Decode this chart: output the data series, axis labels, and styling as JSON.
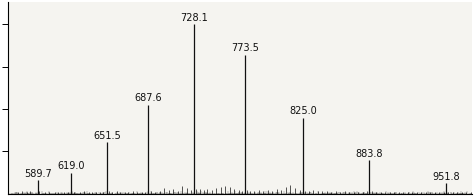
{
  "xlim": [
    563,
    975
  ],
  "ylim": [
    0,
    1.13
  ],
  "background_color": "#ffffff",
  "plot_bg_color": "#f5f4f0",
  "spine_color": "#000000",
  "peaks": [
    {
      "mz": 589.7,
      "intensity": 0.082,
      "label": "589.7"
    },
    {
      "mz": 619.0,
      "intensity": 0.125,
      "label": "619.0"
    },
    {
      "mz": 651.5,
      "intensity": 0.305,
      "label": "651.5"
    },
    {
      "mz": 687.6,
      "intensity": 0.525,
      "label": "687.6"
    },
    {
      "mz": 728.1,
      "intensity": 1.0,
      "label": "728.1"
    },
    {
      "mz": 773.5,
      "intensity": 0.82,
      "label": "773.5"
    },
    {
      "mz": 825.0,
      "intensity": 0.45,
      "label": "825.0"
    },
    {
      "mz": 883.8,
      "intensity": 0.2,
      "label": "883.8"
    },
    {
      "mz": 951.8,
      "intensity": 0.065,
      "label": "951.8"
    }
  ],
  "ytick_positions": [
    0.25,
    0.5,
    0.75,
    1.0
  ],
  "peak_color": "#111111",
  "label_fontsize": 7.0,
  "label_color": "#111111",
  "minor_peaks": [
    [
      572,
      0.012
    ],
    [
      576,
      0.018
    ],
    [
      580,
      0.01
    ],
    [
      583,
      0.015
    ],
    [
      591,
      0.015
    ],
    [
      596,
      0.013
    ],
    [
      600,
      0.01
    ],
    [
      605,
      0.012
    ],
    [
      608,
      0.01
    ],
    [
      613,
      0.012
    ],
    [
      617,
      0.01
    ],
    [
      622,
      0.013
    ],
    [
      627,
      0.012
    ],
    [
      631,
      0.015
    ],
    [
      635,
      0.01
    ],
    [
      638,
      0.013
    ],
    [
      641,
      0.01
    ],
    [
      645,
      0.012
    ],
    [
      648,
      0.01
    ],
    [
      653,
      0.015
    ],
    [
      656,
      0.012
    ],
    [
      660,
      0.018
    ],
    [
      663,
      0.013
    ],
    [
      667,
      0.01
    ],
    [
      670,
      0.012
    ],
    [
      674,
      0.015
    ],
    [
      678,
      0.01
    ],
    [
      682,
      0.013
    ],
    [
      685,
      0.012
    ],
    [
      690,
      0.018
    ],
    [
      694,
      0.013
    ],
    [
      698,
      0.015
    ],
    [
      702,
      0.035
    ],
    [
      706,
      0.025
    ],
    [
      710,
      0.03
    ],
    [
      714,
      0.02
    ],
    [
      718,
      0.045
    ],
    [
      722,
      0.035
    ],
    [
      726,
      0.025
    ],
    [
      730,
      0.03
    ],
    [
      734,
      0.028
    ],
    [
      737,
      0.022
    ],
    [
      740,
      0.03
    ],
    [
      744,
      0.025
    ],
    [
      748,
      0.035
    ],
    [
      752,
      0.04
    ],
    [
      756,
      0.045
    ],
    [
      760,
      0.038
    ],
    [
      764,
      0.03
    ],
    [
      768,
      0.025
    ],
    [
      771,
      0.02
    ],
    [
      775,
      0.025
    ],
    [
      778,
      0.018
    ],
    [
      782,
      0.02
    ],
    [
      786,
      0.025
    ],
    [
      790,
      0.018
    ],
    [
      794,
      0.022
    ],
    [
      798,
      0.018
    ],
    [
      802,
      0.03
    ],
    [
      806,
      0.025
    ],
    [
      810,
      0.038
    ],
    [
      814,
      0.055
    ],
    [
      818,
      0.035
    ],
    [
      822,
      0.025
    ],
    [
      827,
      0.02
    ],
    [
      830,
      0.018
    ],
    [
      834,
      0.022
    ],
    [
      838,
      0.018
    ],
    [
      842,
      0.015
    ],
    [
      846,
      0.018
    ],
    [
      850,
      0.013
    ],
    [
      854,
      0.015
    ],
    [
      858,
      0.012
    ],
    [
      862,
      0.015
    ],
    [
      866,
      0.01
    ],
    [
      870,
      0.013
    ],
    [
      874,
      0.01
    ],
    [
      878,
      0.013
    ],
    [
      882,
      0.015
    ],
    [
      886,
      0.018
    ],
    [
      890,
      0.012
    ],
    [
      894,
      0.01
    ],
    [
      898,
      0.013
    ],
    [
      902,
      0.01
    ],
    [
      906,
      0.012
    ],
    [
      910,
      0.01
    ],
    [
      914,
      0.012
    ],
    [
      918,
      0.01
    ],
    [
      922,
      0.012
    ],
    [
      926,
      0.01
    ],
    [
      930,
      0.013
    ],
    [
      934,
      0.01
    ],
    [
      938,
      0.012
    ],
    [
      942,
      0.01
    ],
    [
      946,
      0.013
    ],
    [
      950,
      0.01
    ],
    [
      954,
      0.012
    ],
    [
      958,
      0.01
    ],
    [
      962,
      0.012
    ],
    [
      966,
      0.01
    ],
    [
      970,
      0.012
    ],
    [
      974,
      0.01
    ]
  ]
}
